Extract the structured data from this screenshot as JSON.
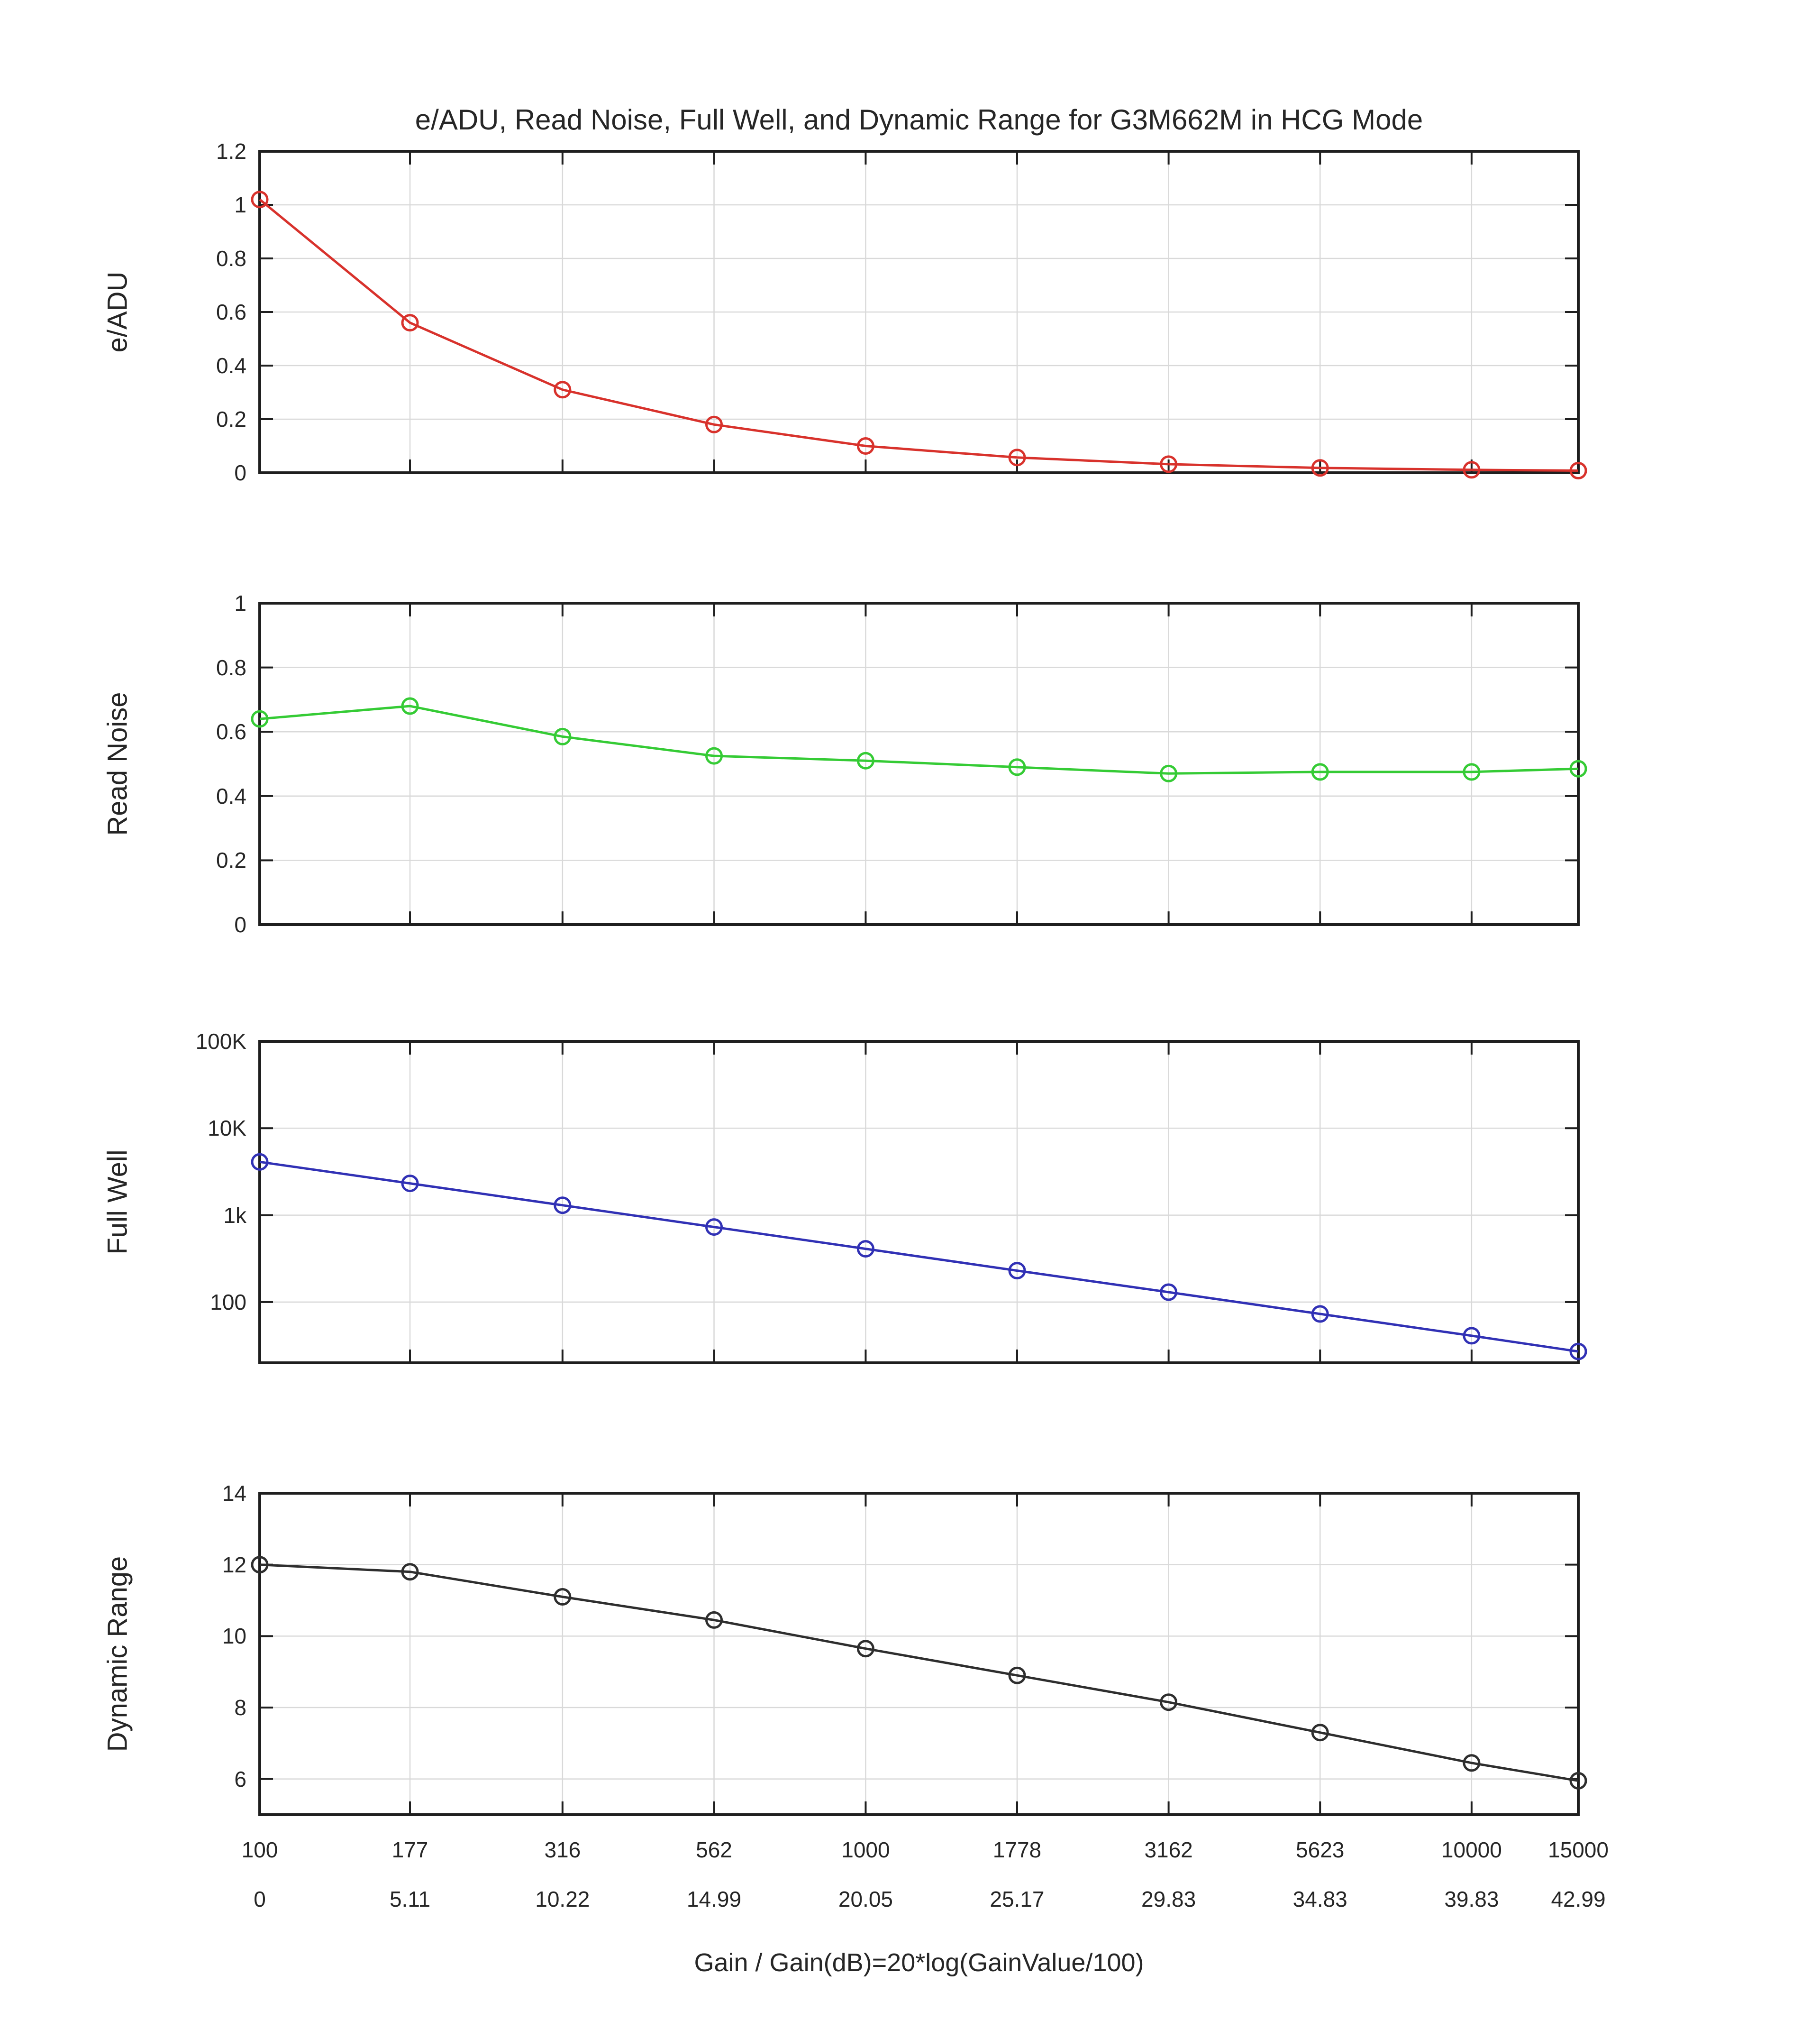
{
  "chart_data": {
    "type": "line",
    "title": "e/ADU, Read Noise, Full Well, and Dynamic Range for G3M662M in HCG Mode",
    "xlabel": "Gain / Gain(dB)=20*log(GainValue/100)",
    "x_scale": "log",
    "x": [
      100,
      177,
      316,
      562,
      1000,
      1778,
      3162,
      5623,
      10000,
      15000
    ],
    "x_range": [
      100,
      15000
    ],
    "x_tick_labels_gain": [
      "100",
      "177",
      "316",
      "562",
      "1000",
      "1778",
      "3162",
      "5623",
      "10000",
      "15000"
    ],
    "x_tick_labels_db": [
      "0",
      "5.11",
      "10.22",
      "14.99",
      "20.05",
      "25.17",
      "29.83",
      "34.83",
      "39.83",
      "42.99"
    ],
    "grid": true,
    "marker": "open-circle",
    "subplots": [
      {
        "name": "e/ADU",
        "ylabel": "e/ADU",
        "yscale": "linear",
        "ylim": [
          0,
          1.2
        ],
        "yticks": [
          {
            "v": 0,
            "label": "0"
          },
          {
            "v": 0.2,
            "label": "0.2"
          },
          {
            "v": 0.4,
            "label": "0.4"
          },
          {
            "v": 0.6,
            "label": "0.6"
          },
          {
            "v": 0.8,
            "label": "0.8"
          },
          {
            "v": 1,
            "label": "1"
          },
          {
            "v": 1.2,
            "label": "1.2"
          }
        ],
        "color": "#d8322c",
        "values": [
          1.02,
          0.56,
          0.31,
          0.18,
          0.1,
          0.057,
          0.032,
          0.018,
          0.011,
          0.008
        ]
      },
      {
        "name": "Read Noise",
        "ylabel": "Read Noise",
        "yscale": "linear",
        "ylim": [
          0,
          1
        ],
        "yticks": [
          {
            "v": 0,
            "label": "0"
          },
          {
            "v": 0.2,
            "label": "0.2"
          },
          {
            "v": 0.4,
            "label": "0.4"
          },
          {
            "v": 0.6,
            "label": "0.6"
          },
          {
            "v": 0.8,
            "label": "0.8"
          },
          {
            "v": 1,
            "label": "1"
          }
        ],
        "color": "#35cb35",
        "values": [
          0.64,
          0.68,
          0.585,
          0.525,
          0.51,
          0.49,
          0.47,
          0.475,
          0.475,
          0.485
        ]
      },
      {
        "name": "Full Well",
        "ylabel": "Full Well",
        "yscale": "log",
        "ylim": [
          20,
          100000
        ],
        "yticks": [
          {
            "v": 100,
            "label": "100"
          },
          {
            "v": 1000,
            "label": "1k"
          },
          {
            "v": 10000,
            "label": "10K"
          },
          {
            "v": 100000,
            "label": "100K"
          }
        ],
        "color": "#3131b5",
        "values": [
          4100,
          2320,
          1300,
          730,
          410,
          230,
          130,
          73,
          41,
          27
        ]
      },
      {
        "name": "Dynamic Range",
        "ylabel": "Dynamic Range",
        "yscale": "linear",
        "ylim": [
          5,
          14
        ],
        "yticks": [
          {
            "v": 6,
            "label": "6"
          },
          {
            "v": 8,
            "label": "8"
          },
          {
            "v": 10,
            "label": "10"
          },
          {
            "v": 12,
            "label": "12"
          },
          {
            "v": 14,
            "label": "14"
          }
        ],
        "color": "#2e2e2e",
        "values": [
          12.0,
          11.8,
          11.1,
          10.45,
          9.65,
          8.9,
          8.15,
          7.3,
          6.45,
          5.95
        ]
      }
    ],
    "colors": {
      "grid": "#d9d9d9",
      "axis": "#1f1f1f",
      "text": "#262626",
      "background": "#ffffff"
    }
  }
}
